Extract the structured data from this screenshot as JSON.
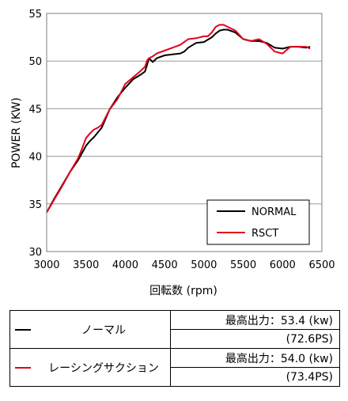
{
  "chart_data": {
    "type": "line",
    "xlabel": "回転数 (rpm)",
    "ylabel": "POWER (KW)",
    "xlim": [
      3000,
      6500
    ],
    "ylim": [
      30,
      55
    ],
    "xticks": [
      3000,
      3500,
      4000,
      4500,
      5000,
      5500,
      6000,
      6500
    ],
    "yticks": [
      30,
      35,
      40,
      45,
      50,
      55
    ],
    "xtick_labels": [
      "3000",
      "3500",
      "4000",
      "4500",
      "5000",
      "5500",
      "6000",
      "6500"
    ],
    "ytick_labels": [
      "30",
      "35",
      "40",
      "45",
      "50",
      "55"
    ],
    "grid": "horizontal",
    "legend_position": "bottom-right",
    "series": [
      {
        "name": "NORMAL",
        "color": "#000000",
        "x": [
          3000,
          3100,
          3200,
          3300,
          3400,
          3500,
          3550,
          3600,
          3650,
          3700,
          3800,
          3900,
          4000,
          4100,
          4200,
          4250,
          4280,
          4300,
          4350,
          4400,
          4500,
          4600,
          4700,
          4750,
          4800,
          4900,
          5000,
          5100,
          5150,
          5200,
          5250,
          5300,
          5400,
          5500,
          5600,
          5700,
          5800,
          5900,
          6000,
          6100,
          6200,
          6300,
          6350
        ],
        "values": [
          34.1,
          35.6,
          37.0,
          38.4,
          39.6,
          41.1,
          41.6,
          42.0,
          42.5,
          43.0,
          44.9,
          46.2,
          47.2,
          48.1,
          48.6,
          48.9,
          49.7,
          50.3,
          49.9,
          50.3,
          50.6,
          50.7,
          50.8,
          51.0,
          51.4,
          51.9,
          52.0,
          52.5,
          52.9,
          53.2,
          53.3,
          53.3,
          53.0,
          52.3,
          52.1,
          52.1,
          51.9,
          51.4,
          51.3,
          51.5,
          51.5,
          51.4,
          51.5
        ]
      },
      {
        "name": "RSCT",
        "color": "#e3001b",
        "x": [
          3000,
          3100,
          3200,
          3300,
          3400,
          3450,
          3500,
          3550,
          3600,
          3650,
          3700,
          3800,
          3900,
          4000,
          4100,
          4200,
          4250,
          4280,
          4300,
          4350,
          4400,
          4500,
          4600,
          4700,
          4750,
          4800,
          4900,
          5000,
          5050,
          5100,
          5150,
          5200,
          5250,
          5300,
          5400,
          5500,
          5600,
          5700,
          5800,
          5900,
          6000,
          6100,
          6200,
          6300,
          6350
        ],
        "values": [
          34.1,
          35.5,
          36.9,
          38.4,
          39.8,
          40.8,
          41.9,
          42.4,
          42.8,
          43.0,
          43.3,
          44.9,
          46.0,
          47.6,
          48.3,
          49.0,
          49.4,
          50.1,
          50.3,
          50.5,
          50.8,
          51.1,
          51.4,
          51.7,
          52.0,
          52.3,
          52.4,
          52.6,
          52.6,
          53.0,
          53.6,
          53.8,
          53.8,
          53.6,
          53.2,
          52.3,
          52.1,
          52.3,
          51.8,
          51.0,
          50.8,
          51.5,
          51.5,
          51.5,
          51.3
        ]
      }
    ]
  },
  "summary_table": {
    "rows": [
      {
        "series_name": "ノーマル",
        "line_color": "#000000",
        "max_output": "最高出力：53.4 (kw)",
        "ps": "(72.6PS)"
      },
      {
        "series_name": "レーシングサクション",
        "line_color": "#e3001b",
        "max_output": "最高出力：54.0 (kw)",
        "ps": "(73.4PS)"
      }
    ]
  }
}
